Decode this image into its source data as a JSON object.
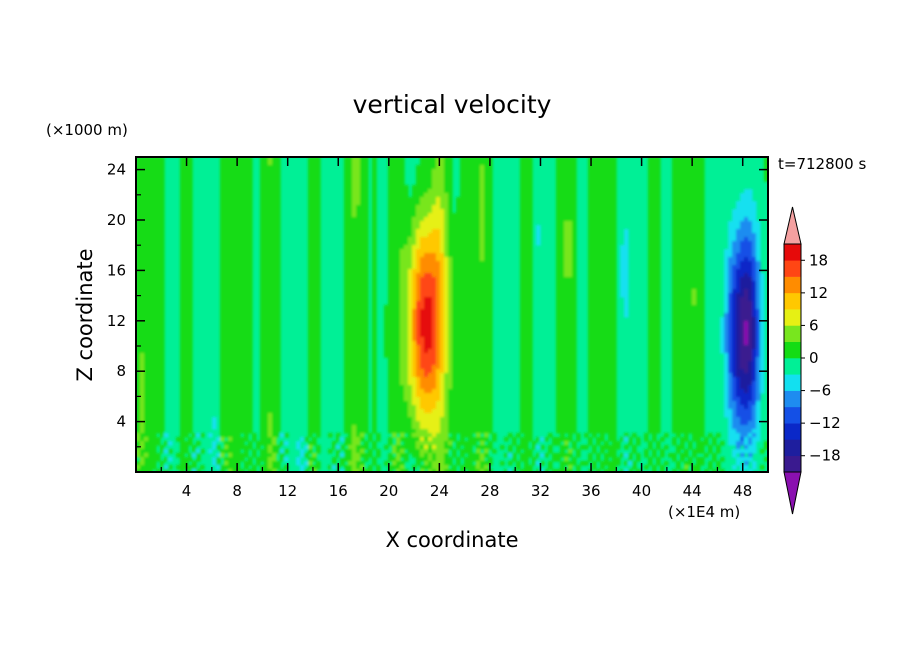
{
  "chart_data": {
    "type": "heatmap",
    "title": "vertical velocity",
    "xlabel": "X coordinate",
    "ylabel": "Z coordinate",
    "x_unit": "(×1E4 m)",
    "y_unit": "(×1000 m)",
    "time_label": "t=712800 s",
    "xlim": [
      0,
      50
    ],
    "ylim": [
      0,
      25
    ],
    "x_ticks": [
      4,
      8,
      12,
      16,
      20,
      24,
      28,
      32,
      36,
      40,
      44,
      48
    ],
    "y_ticks": [
      4,
      8,
      12,
      16,
      20,
      24
    ],
    "x_tick_labels": [
      "4",
      "8",
      "12",
      "16",
      "20",
      "24",
      "28",
      "32",
      "36",
      "40",
      "44",
      "48"
    ],
    "y_tick_labels": [
      "4",
      "8",
      "12",
      "16",
      "20",
      "24"
    ],
    "colorbar": {
      "levels": [
        -21,
        -18,
        -15,
        -12,
        -9,
        -6,
        -3,
        0,
        3,
        6,
        9,
        12,
        15,
        18,
        21
      ],
      "tick_values": [
        -18,
        -12,
        -6,
        0,
        6,
        12,
        18
      ],
      "tick_labels": [
        "−18",
        "−12",
        "−6",
        "0",
        "6",
        "12",
        "18"
      ],
      "colors": [
        "#3a1a8f",
        "#1e1e9e",
        "#0a28c8",
        "#1450e6",
        "#1e8cf0",
        "#12e0f0",
        "#00f096",
        "#14dc14",
        "#78e61e",
        "#e6f014",
        "#ffc800",
        "#ff8c00",
        "#ff4614",
        "#e60a0a"
      ],
      "under_color": "#8a10b0",
      "over_color": "#f4a0a0"
    },
    "features": [
      {
        "name": "updraft core",
        "x_center": 23,
        "z_center": 12,
        "x_halfwidth": 1.6,
        "z_halfwidth": 11,
        "w_max": 20
      },
      {
        "name": "downdraft core",
        "x_center": 48,
        "z_center": 11,
        "x_halfwidth": 1.3,
        "z_halfwidth": 10,
        "w_max": -20
      }
    ]
  }
}
